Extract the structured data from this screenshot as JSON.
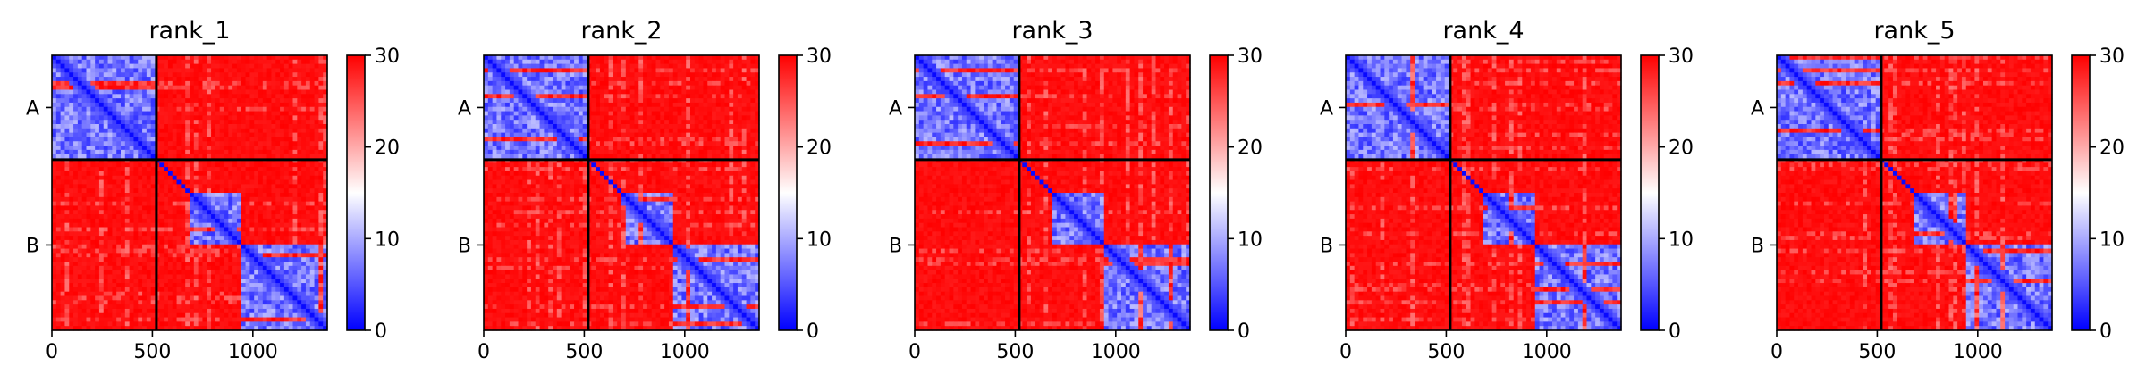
{
  "chart_data": {
    "type": "heatmap",
    "description_kind": "predicted aligned error matrices per model rank",
    "panels": [
      {
        "title": "rank_1"
      },
      {
        "title": "rank_2"
      },
      {
        "title": "rank_3"
      },
      {
        "title": "rank_4"
      },
      {
        "title": "rank_5"
      }
    ],
    "x_ticks": [
      {
        "value": 0,
        "label": "0"
      },
      {
        "value": 500,
        "label": "500"
      },
      {
        "value": 1000,
        "label": "1000"
      }
    ],
    "x_range": [
      0,
      1370
    ],
    "y_range": [
      0,
      1370
    ],
    "chains": [
      {
        "label": "A",
        "start": 0,
        "end": 520
      },
      {
        "label": "B",
        "start": 520,
        "end": 1370
      }
    ],
    "chain_boundary": 520,
    "colorbar": {
      "min": 0,
      "max": 30,
      "ticks": [
        {
          "value": 0,
          "label": "0"
        },
        {
          "value": 10,
          "label": "10"
        },
        {
          "value": 20,
          "label": "20"
        },
        {
          "value": 30,
          "label": "30"
        }
      ],
      "colormap": "bwr"
    },
    "domains": [
      {
        "start": 0,
        "end": 520,
        "value": 7
      },
      {
        "start": 690,
        "end": 940,
        "value": 7
      },
      {
        "start": 940,
        "end": 1370,
        "value": 7
      }
    ],
    "colors": {
      "low": "#0000ff",
      "mid": "#ffffff",
      "high": "#ff0000"
    }
  }
}
